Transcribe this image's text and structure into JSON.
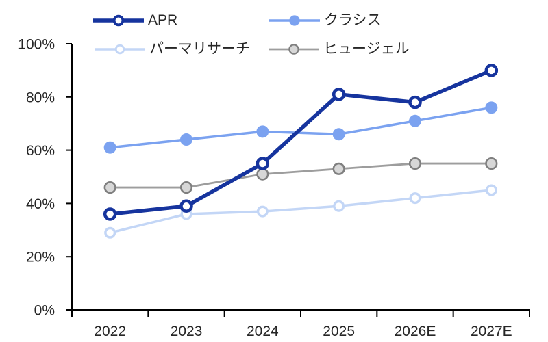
{
  "chart_data": {
    "type": "line",
    "title": "",
    "categories": [
      "2022",
      "2023",
      "2024",
      "2025",
      "2026E",
      "2027E"
    ],
    "series": [
      {
        "name": "APR",
        "color": "#16349e",
        "marker": "open-circle",
        "marker_fill": "#ffffff",
        "values": [
          36,
          39,
          55,
          81,
          78,
          90
        ]
      },
      {
        "name": "クラシス",
        "color": "#7ba2f0",
        "marker": "filled-circle",
        "marker_fill": "#7ba2f0",
        "values": [
          61,
          64,
          67,
          66,
          71,
          76
        ]
      },
      {
        "name": "パーマリサーチ",
        "color": "#c3d6f6",
        "marker": "open-circle",
        "marker_fill": "#ffffff",
        "values": [
          29,
          36,
          37,
          39,
          42,
          45
        ]
      },
      {
        "name": "ヒュージェル",
        "color": "#9d9d9d",
        "marker": "ring-circle",
        "marker_fill": "#d7d7d7",
        "marker_ring": "#7f7f7f",
        "values": [
          46,
          46,
          51,
          53,
          55,
          55
        ]
      }
    ],
    "x_axis": {
      "tick_labels": [
        "2022",
        "2023",
        "2024",
        "2025",
        "2026E",
        "2027E"
      ]
    },
    "y_axis": {
      "min": 0,
      "max": 100,
      "unit": "%",
      "tick_values": [
        0,
        20,
        40,
        60,
        80,
        100
      ],
      "tick_labels": [
        "0%",
        "20%",
        "40%",
        "60%",
        "80%",
        "100%"
      ]
    },
    "legend": {
      "position": "top",
      "entries": [
        "APR",
        "クラシス",
        "パーマリサーチ",
        "ヒュージェル"
      ]
    },
    "grid": false,
    "colors": {
      "axis": "#000000",
      "text": "#262626"
    }
  }
}
